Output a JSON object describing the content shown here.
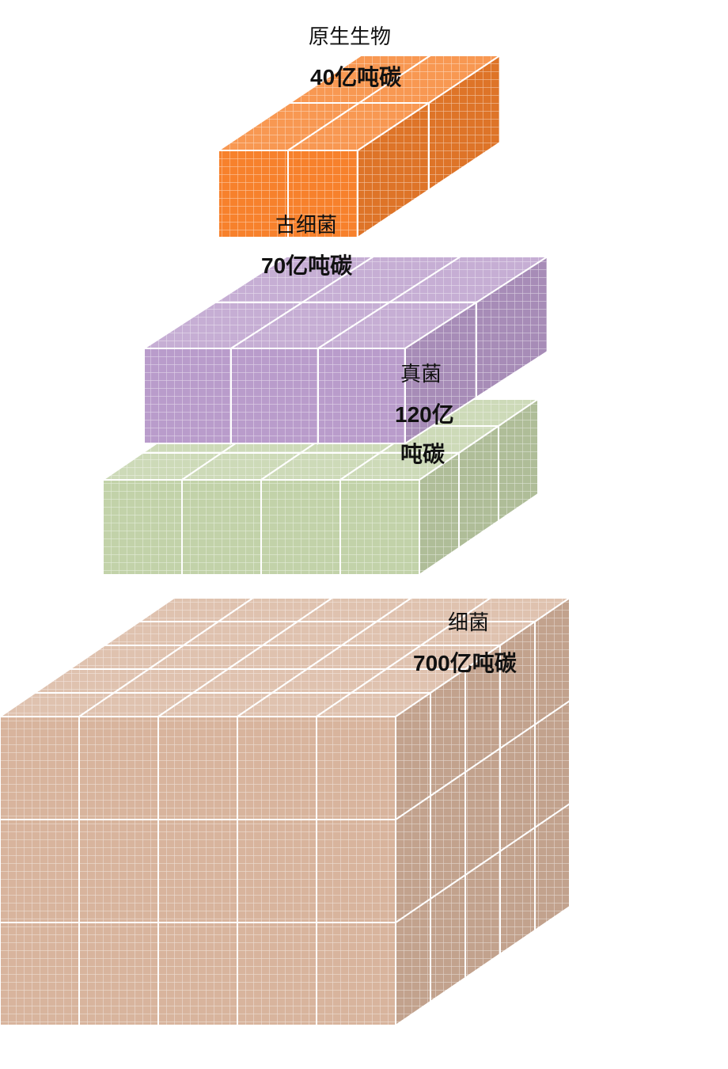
{
  "tiers": [
    {
      "name": "原生生物",
      "amount": "40亿吨碳",
      "color": "#f7812c"
    },
    {
      "name": "古细菌",
      "amount": "70亿吨碳",
      "color": "#b99ccb"
    },
    {
      "name": "真菌",
      "amount_line1": "120亿",
      "amount_line2": "吨碳",
      "color": "#c2d2a9"
    },
    {
      "name": "细菌",
      "amount": "700亿吨碳",
      "color": "#d8b49d"
    }
  ]
}
